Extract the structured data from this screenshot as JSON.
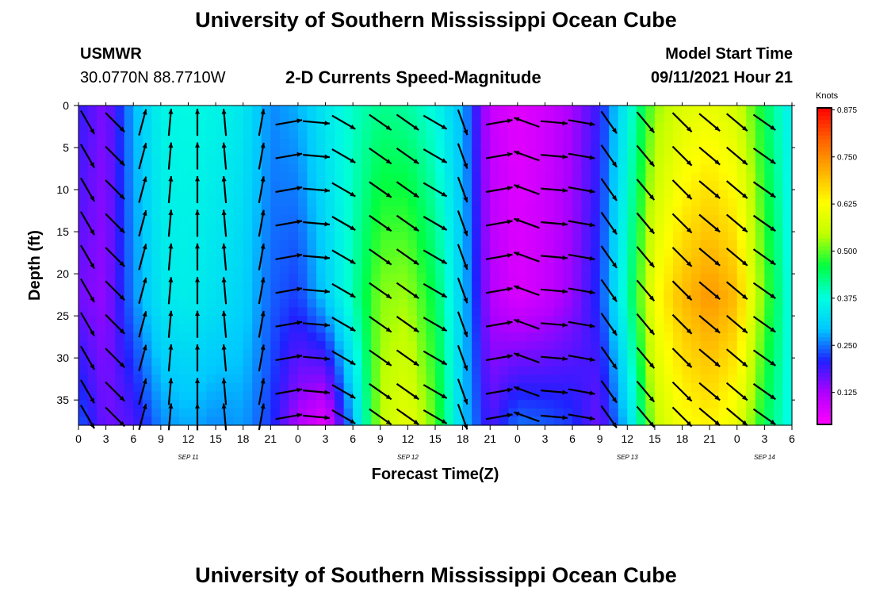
{
  "page": {
    "title_top": "University of Southern Mississippi Ocean Cube",
    "title_bottom": "University of Southern Mississippi Ocean Cube",
    "station": "USMWR",
    "coordinates": "30.0770N  88.7710W",
    "plot_title": "2-D Currents Speed-Magnitude",
    "model_start_label": "Model Start Time",
    "model_start_value": "09/11/2021 Hour 21"
  },
  "chart_data": {
    "type": "heatmap",
    "title": "2-D Currents Speed-Magnitude",
    "xlabel": "Forecast Time(Z)",
    "ylabel": "Depth (ft)",
    "x_range_hours": [
      0,
      78
    ],
    "y_range_ft": [
      0,
      38
    ],
    "x_tick_labels": [
      "0",
      "3",
      "6",
      "9",
      "12",
      "15",
      "18",
      "21",
      "0",
      "3",
      "6",
      "9",
      "12",
      "15",
      "18",
      "21",
      "0",
      "3",
      "6",
      "9",
      "12",
      "15",
      "18",
      "21",
      "0",
      "3",
      "6"
    ],
    "day_labels": [
      {
        "label": "SEP 11",
        "hour": 12
      },
      {
        "label": "SEP 12",
        "hour": 36
      },
      {
        "label": "SEP 13",
        "hour": 60
      },
      {
        "label": "SEP 14",
        "hour": 75
      }
    ],
    "y_ticks": [
      0,
      5,
      10,
      15,
      20,
      25,
      30,
      35
    ],
    "colorbar": {
      "label": "Knots",
      "ticks": [
        "0.875",
        "0.750",
        "0.625",
        "0.500",
        "0.375",
        "0.250",
        "0.125"
      ],
      "tick_values": [
        0.875,
        0.75,
        0.625,
        0.5,
        0.375,
        0.25,
        0.125
      ],
      "range": [
        0.04,
        0.88
      ],
      "colors": [
        "#ff00ff",
        "#b000ff",
        "#2020ff",
        "#00c8ff",
        "#00ffe0",
        "#00ff40",
        "#c0ff00",
        "#ffff00",
        "#ffb000",
        "#ff6000",
        "#ff0000"
      ]
    },
    "speed_profile_by_hour": [
      {
        "hour": 0,
        "shallow": 0.2,
        "mid": 0.16,
        "deep": 0.24
      },
      {
        "hour": 3,
        "shallow": 0.15,
        "mid": 0.14,
        "deep": 0.16
      },
      {
        "hour": 6,
        "shallow": 0.28,
        "mid": 0.26,
        "deep": 0.18
      },
      {
        "hour": 9,
        "shallow": 0.36,
        "mid": 0.34,
        "deep": 0.26
      },
      {
        "hour": 12,
        "shallow": 0.37,
        "mid": 0.35,
        "deep": 0.28
      },
      {
        "hour": 15,
        "shallow": 0.36,
        "mid": 0.33,
        "deep": 0.26
      },
      {
        "hour": 18,
        "shallow": 0.34,
        "mid": 0.31,
        "deep": 0.27
      },
      {
        "hour": 21,
        "shallow": 0.26,
        "mid": 0.24,
        "deep": 0.22
      },
      {
        "hour": 24,
        "shallow": 0.28,
        "mid": 0.22,
        "deep": 0.12
      },
      {
        "hour": 27,
        "shallow": 0.34,
        "mid": 0.3,
        "deep": 0.06
      },
      {
        "hour": 30,
        "shallow": 0.39,
        "mid": 0.4,
        "deep": 0.28
      },
      {
        "hour": 33,
        "shallow": 0.42,
        "mid": 0.52,
        "deep": 0.55
      },
      {
        "hour": 36,
        "shallow": 0.41,
        "mid": 0.53,
        "deep": 0.6
      },
      {
        "hour": 39,
        "shallow": 0.37,
        "mid": 0.45,
        "deep": 0.5
      },
      {
        "hour": 42,
        "shallow": 0.28,
        "mid": 0.3,
        "deep": 0.3
      },
      {
        "hour": 45,
        "shallow": 0.1,
        "mid": 0.12,
        "deep": 0.18
      },
      {
        "hour": 48,
        "shallow": 0.07,
        "mid": 0.08,
        "deep": 0.25
      },
      {
        "hour": 51,
        "shallow": 0.09,
        "mid": 0.1,
        "deep": 0.24
      },
      {
        "hour": 54,
        "shallow": 0.13,
        "mid": 0.14,
        "deep": 0.22
      },
      {
        "hour": 57,
        "shallow": 0.2,
        "mid": 0.22,
        "deep": 0.16
      },
      {
        "hour": 60,
        "shallow": 0.36,
        "mid": 0.4,
        "deep": 0.3
      },
      {
        "hour": 63,
        "shallow": 0.52,
        "mid": 0.62,
        "deep": 0.55
      },
      {
        "hour": 66,
        "shallow": 0.58,
        "mid": 0.7,
        "deep": 0.62
      },
      {
        "hour": 69,
        "shallow": 0.6,
        "mid": 0.74,
        "deep": 0.64
      },
      {
        "hour": 72,
        "shallow": 0.57,
        "mid": 0.7,
        "deep": 0.6
      },
      {
        "hour": 75,
        "shallow": 0.45,
        "mid": 0.5,
        "deep": 0.45
      },
      {
        "hour": 78,
        "shallow": 0.34,
        "mid": 0.36,
        "deep": 0.36
      }
    ],
    "vector_directions_by_hour": [
      {
        "hour": 1,
        "dir_deg": 150
      },
      {
        "hour": 4,
        "dir_deg": 135
      },
      {
        "hour": 7,
        "dir_deg": 15
      },
      {
        "hour": 10,
        "dir_deg": 5
      },
      {
        "hour": 13,
        "dir_deg": 0
      },
      {
        "hour": 16,
        "dir_deg": 355
      },
      {
        "hour": 20,
        "dir_deg": 10
      },
      {
        "hour": 23,
        "dir_deg": 80
      },
      {
        "hour": 26,
        "dir_deg": 95
      },
      {
        "hour": 29,
        "dir_deg": 120
      },
      {
        "hour": 33,
        "dir_deg": 125
      },
      {
        "hour": 36,
        "dir_deg": 125
      },
      {
        "hour": 39,
        "dir_deg": 120
      },
      {
        "hour": 42,
        "dir_deg": 160
      },
      {
        "hour": 46,
        "dir_deg": 80
      },
      {
        "hour": 49,
        "dir_deg": 290
      },
      {
        "hour": 52,
        "dir_deg": 95
      },
      {
        "hour": 55,
        "dir_deg": 100
      },
      {
        "hour": 58,
        "dir_deg": 145
      },
      {
        "hour": 62,
        "dir_deg": 140
      },
      {
        "hour": 66,
        "dir_deg": 135
      },
      {
        "hour": 69,
        "dir_deg": 130
      },
      {
        "hour": 72,
        "dir_deg": 130
      },
      {
        "hour": 75,
        "dir_deg": 125
      }
    ],
    "vector_depths_ft": [
      2,
      6,
      10,
      14,
      18,
      22,
      26,
      30,
      34,
      37
    ],
    "grid": false,
    "legend": "right"
  }
}
